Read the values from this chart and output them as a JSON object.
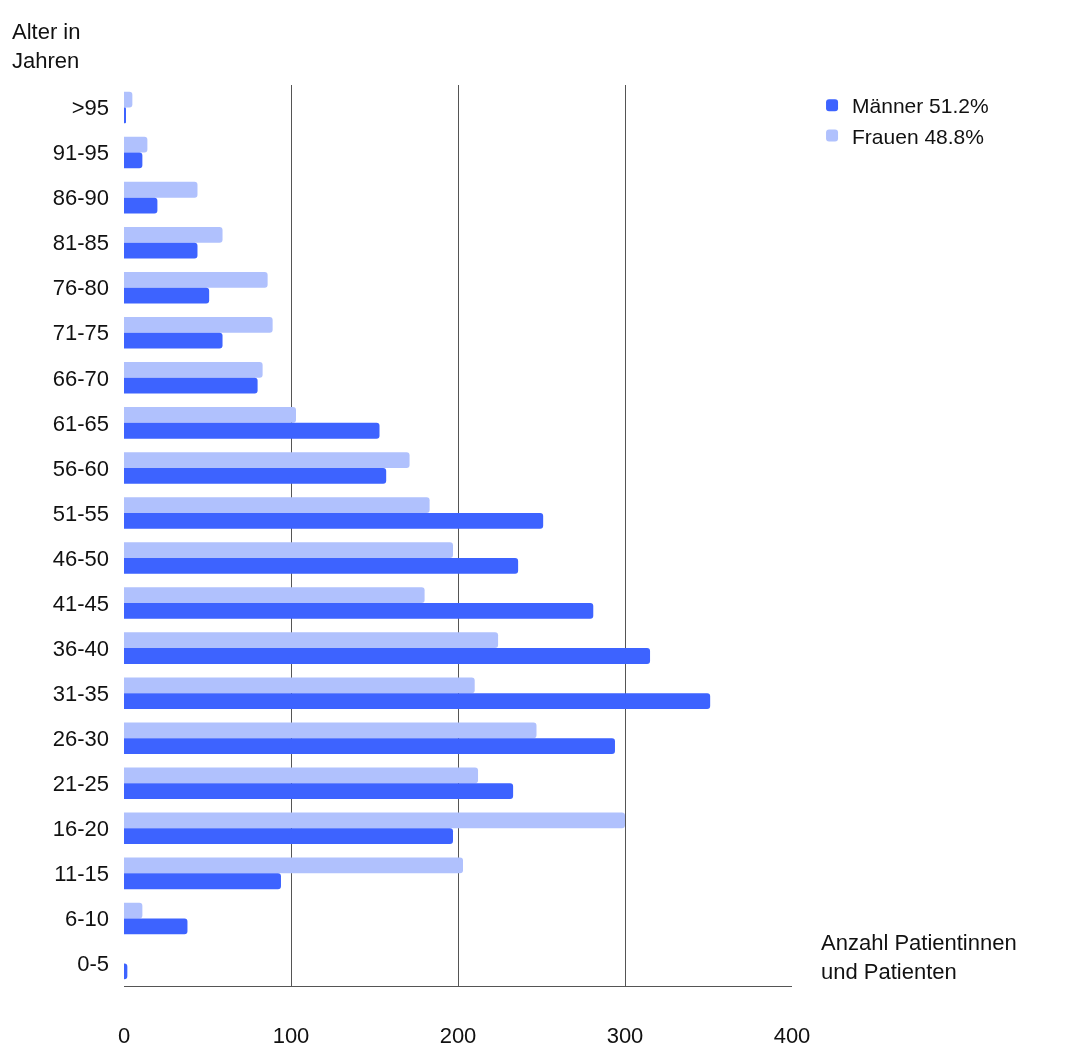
{
  "chart_data": {
    "type": "bar",
    "orientation": "horizontal",
    "xlabel": "Anzahl Patientinnen und Patienten",
    "ylabel": "Alter in Jahren",
    "categories": [
      ">95",
      "91-95",
      "86-90",
      "81-85",
      "76-80",
      "71-75",
      "66-70",
      "61-65",
      "56-60",
      "51-55",
      "46-50",
      "41-45",
      "36-40",
      "31-35",
      "26-30",
      "21-25",
      "16-20",
      "11-15",
      "6-10",
      "0-5"
    ],
    "series": [
      {
        "name": "Männer 51.2%",
        "color": "#3d63ff",
        "values": [
          1,
          11,
          20,
          44,
          51,
          59,
          80,
          153,
          157,
          251,
          236,
          281,
          315,
          351,
          294,
          233,
          197,
          94,
          38,
          2
        ]
      },
      {
        "name": "Frauen 48.8%",
        "color": "#b0c1fd",
        "values": [
          5,
          14,
          44,
          59,
          86,
          89,
          83,
          103,
          171,
          183,
          197,
          180,
          224,
          210,
          247,
          212,
          300,
          203,
          11,
          0
        ]
      }
    ],
    "xlim": [
      0,
      400
    ],
    "xticks": [
      0,
      100,
      200,
      300,
      400
    ],
    "grid": "x",
    "legend": "top right"
  }
}
